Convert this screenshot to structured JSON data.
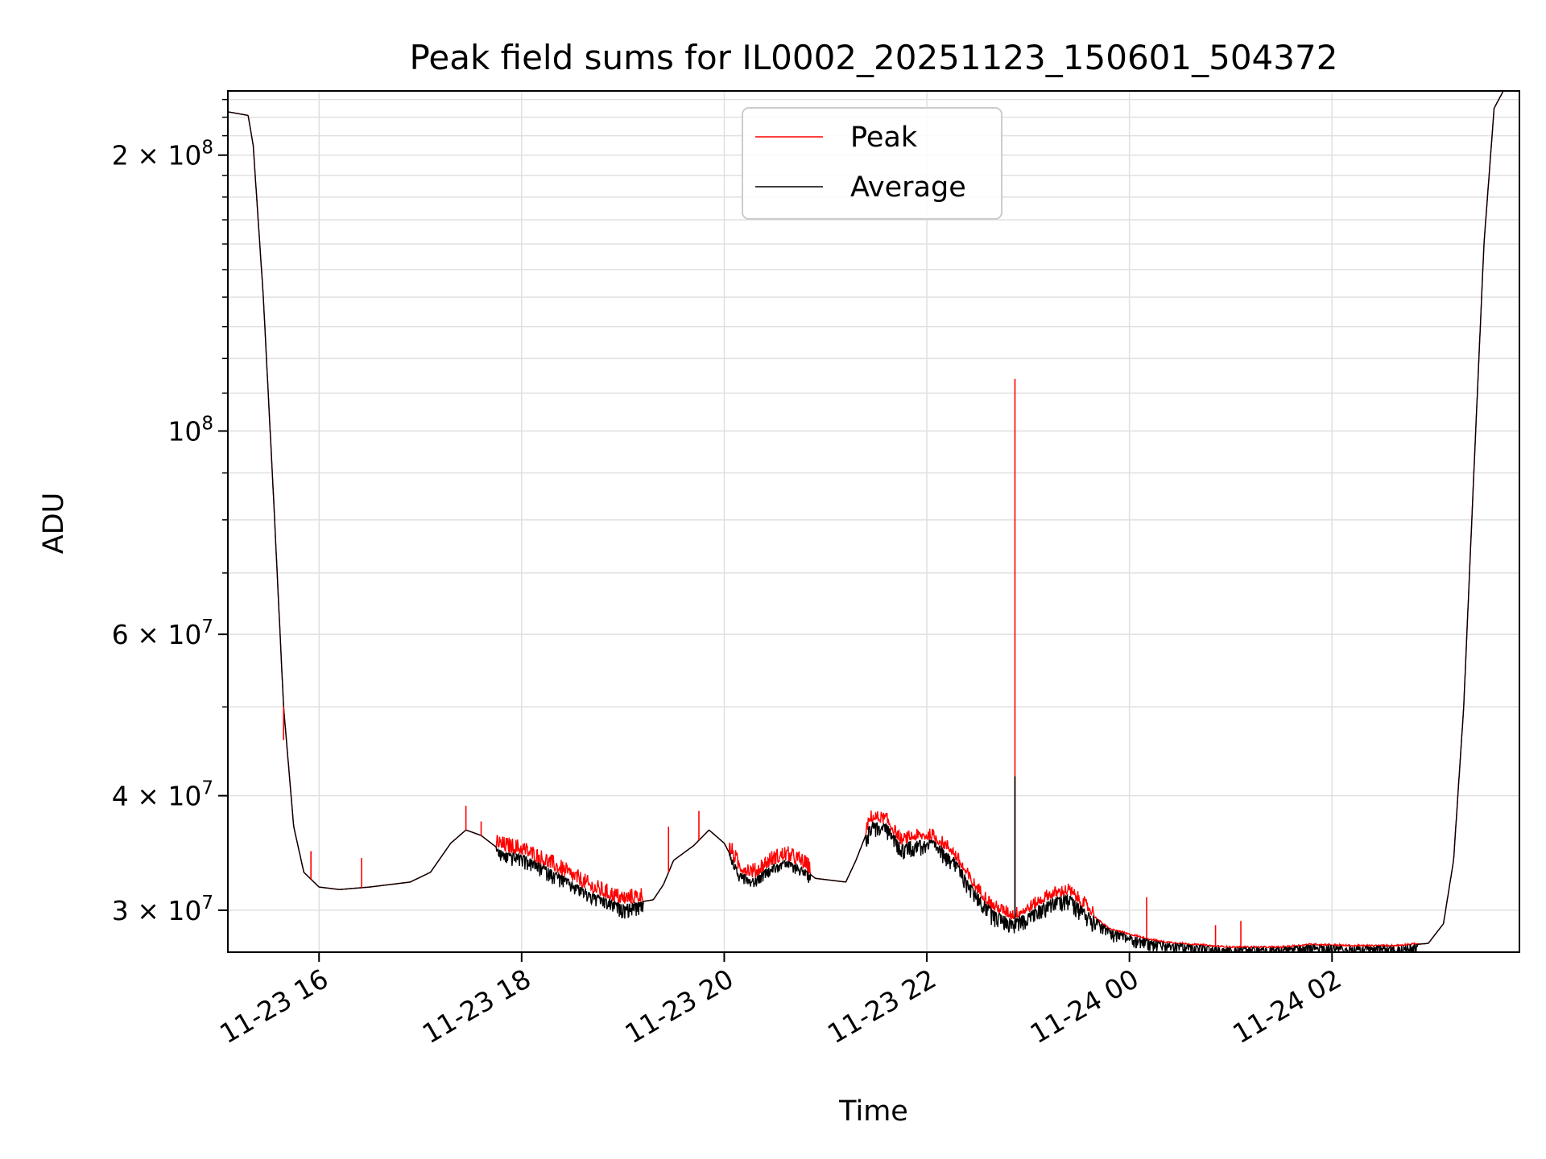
{
  "chart_data": {
    "type": "line",
    "title": "Peak field sums for IL0002_20251123_150601_504372",
    "xlabel": "Time",
    "ylabel": "ADU",
    "yscale": "log",
    "ylim": [
      27000000,
      235000000
    ],
    "xlim_hours": [
      15.1,
      27.85
    ],
    "grid": true,
    "legend_position": "upper-center",
    "x_ticks": [
      {
        "hour": 16,
        "label": "11-23 16"
      },
      {
        "hour": 18,
        "label": "11-23 18"
      },
      {
        "hour": 20,
        "label": "11-23 20"
      },
      {
        "hour": 22,
        "label": "11-23 22"
      },
      {
        "hour": 24,
        "label": "11-24 00"
      },
      {
        "hour": 26,
        "label": "11-24 02"
      }
    ],
    "y_ticks": [
      {
        "value": 200000000,
        "mant": "2",
        "exp": "8"
      },
      {
        "value": 100000000,
        "mant": "",
        "exp": "8"
      },
      {
        "value": 60000000,
        "mant": "6",
        "exp": "7"
      },
      {
        "value": 40000000,
        "mant": "4",
        "exp": "7"
      },
      {
        "value": 30000000,
        "mant": "3",
        "exp": "7"
      }
    ],
    "series": [
      {
        "name": "Peak",
        "color": "#ff0000",
        "spikes": [
          {
            "hour": 15.65,
            "value": 46000000
          },
          {
            "hour": 15.92,
            "value": 34800000
          },
          {
            "hour": 16.42,
            "value": 34200000
          },
          {
            "hour": 17.45,
            "value": 39000000
          },
          {
            "hour": 17.6,
            "value": 37500000
          },
          {
            "hour": 19.45,
            "value": 37000000
          },
          {
            "hour": 19.75,
            "value": 38500000
          },
          {
            "hour": 22.87,
            "value": 114000000
          },
          {
            "hour": 24.17,
            "value": 31000000
          },
          {
            "hour": 24.85,
            "value": 28900000
          },
          {
            "hour": 25.1,
            "value": 29200000
          }
        ]
      },
      {
        "name": "Average",
        "color": "#000000",
        "spikes": [
          {
            "hour": 22.87,
            "value": 42000000
          }
        ]
      }
    ],
    "baseline": [
      [
        15.1,
        223000000
      ],
      [
        15.3,
        221000000
      ],
      [
        15.35,
        205000000
      ],
      [
        15.45,
        140000000
      ],
      [
        15.55,
        85000000
      ],
      [
        15.65,
        50000000
      ],
      [
        15.75,
        37000000
      ],
      [
        15.85,
        33000000
      ],
      [
        16.0,
        31800000
      ],
      [
        16.2,
        31600000
      ],
      [
        16.5,
        31800000
      ],
      [
        16.9,
        32200000
      ],
      [
        17.1,
        33000000
      ],
      [
        17.3,
        35500000
      ],
      [
        17.45,
        36700000
      ],
      [
        17.6,
        36200000
      ],
      [
        17.8,
        34800000
      ],
      [
        18.0,
        34500000
      ],
      [
        18.3,
        33200000
      ],
      [
        18.7,
        31300000
      ],
      [
        19.0,
        30400000
      ],
      [
        19.3,
        30800000
      ],
      [
        19.4,
        32000000
      ],
      [
        19.5,
        34000000
      ],
      [
        19.7,
        35300000
      ],
      [
        19.85,
        36700000
      ],
      [
        20.0,
        35500000
      ],
      [
        20.15,
        33000000
      ],
      [
        20.3,
        32500000
      ],
      [
        20.45,
        33500000
      ],
      [
        20.6,
        34000000
      ],
      [
        20.75,
        33500000
      ],
      [
        20.9,
        32500000
      ],
      [
        21.2,
        32200000
      ],
      [
        21.3,
        34000000
      ],
      [
        21.45,
        37500000
      ],
      [
        21.6,
        37300000
      ],
      [
        21.75,
        35300000
      ],
      [
        21.85,
        35700000
      ],
      [
        22.05,
        35800000
      ],
      [
        22.25,
        34500000
      ],
      [
        22.45,
        31800000
      ],
      [
        22.65,
        30000000
      ],
      [
        22.85,
        29300000
      ],
      [
        23.0,
        29800000
      ],
      [
        23.2,
        30800000
      ],
      [
        23.4,
        31200000
      ],
      [
        23.6,
        29800000
      ],
      [
        23.8,
        28600000
      ],
      [
        24.0,
        28200000
      ],
      [
        24.3,
        27700000
      ],
      [
        24.6,
        27500000
      ],
      [
        25.0,
        27300000
      ],
      [
        25.5,
        27300000
      ],
      [
        25.8,
        27500000
      ],
      [
        26.2,
        27400000
      ],
      [
        26.6,
        27400000
      ],
      [
        26.95,
        27600000
      ],
      [
        27.1,
        29000000
      ],
      [
        27.2,
        34000000
      ],
      [
        27.3,
        50000000
      ],
      [
        27.4,
        90000000
      ],
      [
        27.5,
        160000000
      ],
      [
        27.6,
        225000000
      ],
      [
        27.7,
        236000000
      ],
      [
        27.85,
        236000000
      ]
    ],
    "noisy_ranges": [
      {
        "start": 17.75,
        "end": 19.2,
        "peak_amp": 0.04,
        "avg_amp": 0.035
      },
      {
        "start": 20.05,
        "end": 20.85,
        "peak_amp": 0.04,
        "avg_amp": 0.025
      },
      {
        "start": 21.4,
        "end": 23.65,
        "peak_amp": 0.03,
        "avg_amp": 0.04
      },
      {
        "start": 23.65,
        "end": 26.85,
        "peak_amp": 0.004,
        "avg_amp": 0.03
      }
    ]
  }
}
